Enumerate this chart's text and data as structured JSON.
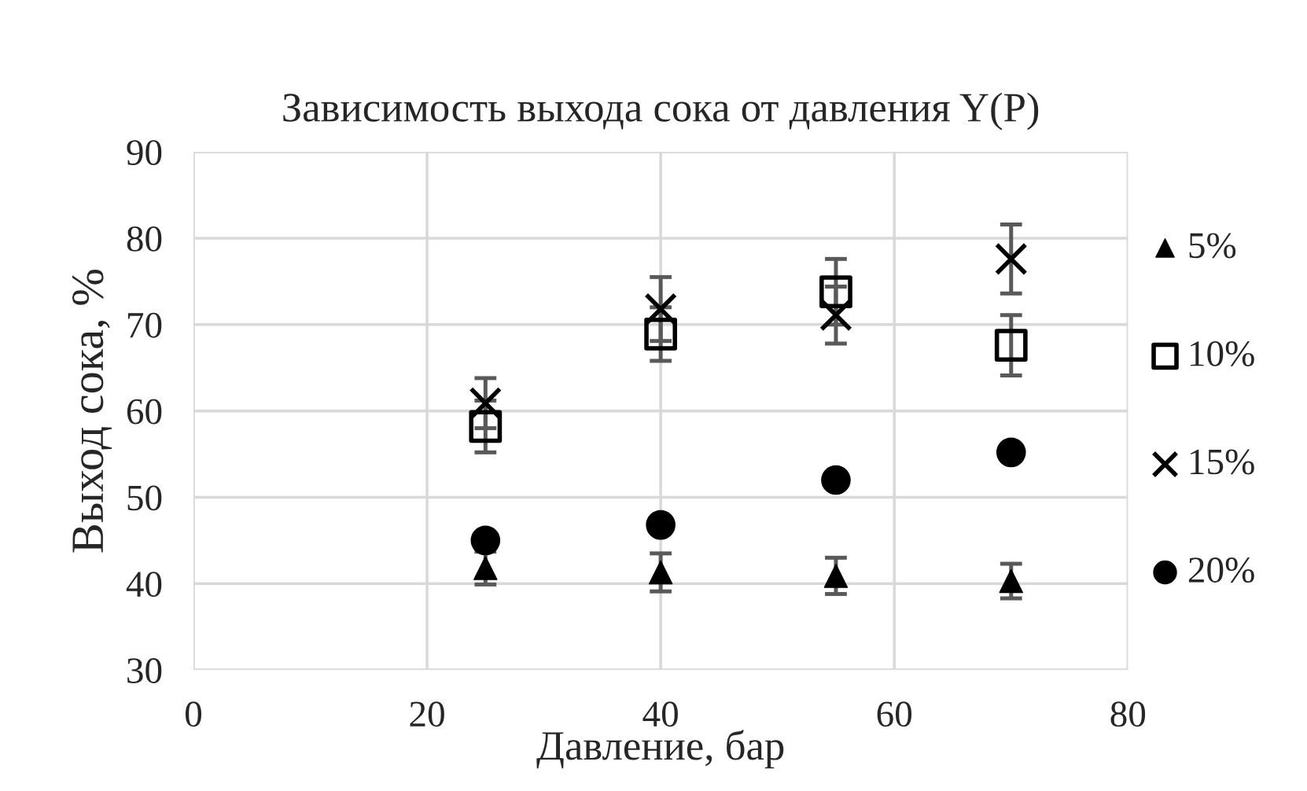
{
  "chart_data": {
    "type": "scatter",
    "title": "Зависимость выхода сока от давления Y(P)",
    "xlabel": "Давление, бар",
    "ylabel": "Выход сока, %",
    "xlim": [
      0,
      80
    ],
    "xticks": [
      0,
      20,
      40,
      60,
      80
    ],
    "ylim": [
      30,
      90
    ],
    "yticks": [
      30,
      40,
      50,
      60,
      70,
      80,
      90
    ],
    "grid": true,
    "legend": "right",
    "series": [
      {
        "name": "5%",
        "color": "#000000",
        "marker": "triangle",
        "x": [
          25,
          40,
          55,
          70
        ],
        "values": [
          41.8,
          41.3,
          40.9,
          40.3
        ],
        "errors": [
          1.9,
          2.2,
          2.1,
          2.0
        ]
      },
      {
        "name": "10%",
        "color": "#000000",
        "marker": "square",
        "x": [
          25,
          40,
          55,
          70
        ],
        "values": [
          58.2,
          68.9,
          73.8,
          67.6
        ],
        "errors": [
          3.0,
          3.1,
          3.8,
          3.5
        ]
      },
      {
        "name": "15%",
        "color": "#000000",
        "marker": "cross",
        "x": [
          25,
          40,
          55,
          70
        ],
        "values": [
          60.9,
          71.8,
          71.1,
          77.6
        ],
        "errors": [
          2.9,
          3.7,
          3.3,
          4.0
        ]
      },
      {
        "name": "20%",
        "color": "#000000",
        "marker": "circle",
        "x": [
          25,
          40,
          55,
          70
        ],
        "values": [
          45.0,
          46.8,
          52.0,
          55.2
        ]
      }
    ]
  }
}
